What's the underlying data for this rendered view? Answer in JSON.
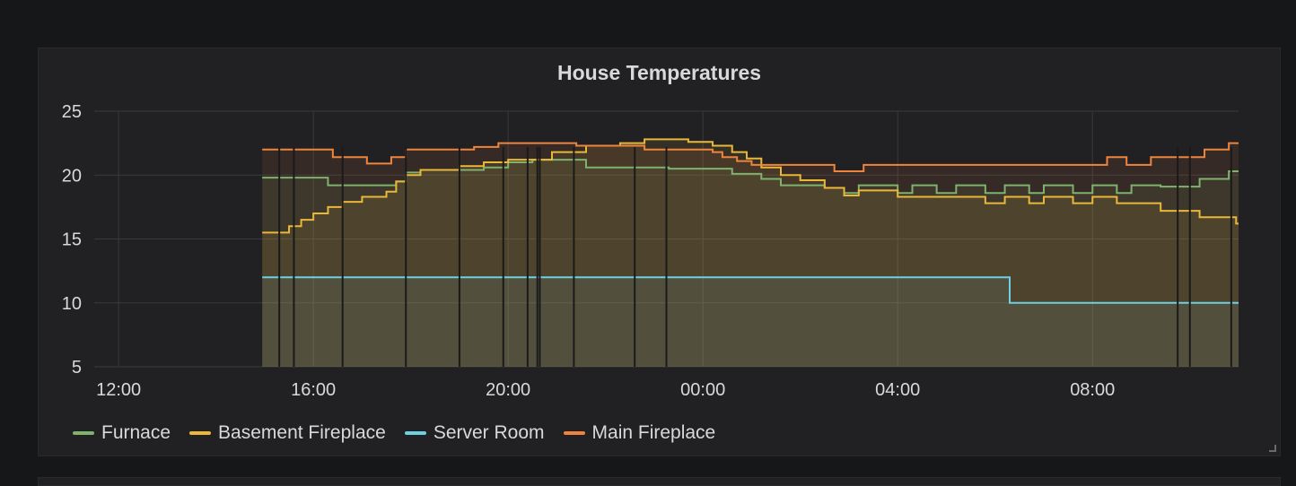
{
  "panel": {
    "title": "House Temperatures"
  },
  "chart_data": {
    "type": "line",
    "title": "House Temperatures",
    "xlabel": "",
    "ylabel": "",
    "x_ticks": [
      "12:00",
      "16:00",
      "20:00",
      "00:00",
      "04:00",
      "08:00"
    ],
    "x_tick_hours": [
      12,
      16,
      20,
      24,
      28,
      32
    ],
    "xlim": [
      11.5,
      35.0
    ],
    "y_ticks": [
      5,
      10,
      15,
      20,
      25
    ],
    "ylim": [
      5,
      25
    ],
    "grid": true,
    "legend_position": "bottom-left",
    "step": true,
    "fill": true,
    "x_unit": "hours (24 = 00:00 next day)",
    "series": [
      {
        "name": "Furnace",
        "color": "#7eb26d",
        "points": [
          [
            14.95,
            19.8
          ],
          [
            16.3,
            19.2
          ],
          [
            17.7,
            19.5
          ],
          [
            17.9,
            20.2
          ],
          [
            18.2,
            20.4
          ],
          [
            19.5,
            20.6
          ],
          [
            20.0,
            21.0
          ],
          [
            20.5,
            21.2
          ],
          [
            21.6,
            20.6
          ],
          [
            23.3,
            20.5
          ],
          [
            24.6,
            20.1
          ],
          [
            25.2,
            19.7
          ],
          [
            25.6,
            19.2
          ],
          [
            26.5,
            19.0
          ],
          [
            26.9,
            18.6
          ],
          [
            27.2,
            19.2
          ],
          [
            28.0,
            18.6
          ],
          [
            28.3,
            19.2
          ],
          [
            28.8,
            18.6
          ],
          [
            29.2,
            19.2
          ],
          [
            29.8,
            18.6
          ],
          [
            30.2,
            19.2
          ],
          [
            30.7,
            18.6
          ],
          [
            31.0,
            19.2
          ],
          [
            31.6,
            18.6
          ],
          [
            32.0,
            19.2
          ],
          [
            32.5,
            18.6
          ],
          [
            32.8,
            19.2
          ],
          [
            33.4,
            19.1
          ],
          [
            34.2,
            19.7
          ],
          [
            34.8,
            20.3
          ],
          [
            35.0,
            20.3
          ]
        ]
      },
      {
        "name": "Basement Fireplace",
        "color": "#eab839",
        "points": [
          [
            14.95,
            15.5
          ],
          [
            15.5,
            16.0
          ],
          [
            15.75,
            16.5
          ],
          [
            16.0,
            17.0
          ],
          [
            16.3,
            17.5
          ],
          [
            16.6,
            17.9
          ],
          [
            17.0,
            18.3
          ],
          [
            17.5,
            18.7
          ],
          [
            17.7,
            19.5
          ],
          [
            17.9,
            20.0
          ],
          [
            18.2,
            20.4
          ],
          [
            19.0,
            20.7
          ],
          [
            19.5,
            21.0
          ],
          [
            20.0,
            21.2
          ],
          [
            20.9,
            21.8
          ],
          [
            21.6,
            22.3
          ],
          [
            22.3,
            22.5
          ],
          [
            22.8,
            22.8
          ],
          [
            23.7,
            22.6
          ],
          [
            24.2,
            22.3
          ],
          [
            24.6,
            21.8
          ],
          [
            24.9,
            21.3
          ],
          [
            25.2,
            20.6
          ],
          [
            25.6,
            20.0
          ],
          [
            26.0,
            19.6
          ],
          [
            26.5,
            19.0
          ],
          [
            26.9,
            18.4
          ],
          [
            27.2,
            18.8
          ],
          [
            28.0,
            18.3
          ],
          [
            29.0,
            18.3
          ],
          [
            29.8,
            17.8
          ],
          [
            30.2,
            18.3
          ],
          [
            30.7,
            17.8
          ],
          [
            31.0,
            18.3
          ],
          [
            31.6,
            17.8
          ],
          [
            32.0,
            18.3
          ],
          [
            32.5,
            17.8
          ],
          [
            33.0,
            17.8
          ],
          [
            33.4,
            17.2
          ],
          [
            34.0,
            17.2
          ],
          [
            34.2,
            16.7
          ],
          [
            34.8,
            16.7
          ],
          [
            34.95,
            16.2
          ],
          [
            35.0,
            16.2
          ]
        ]
      },
      {
        "name": "Server Room",
        "color": "#6ed0e0",
        "points": [
          [
            14.95,
            12.0
          ],
          [
            30.3,
            12.0
          ],
          [
            30.3,
            10.0
          ],
          [
            35.0,
            10.0
          ]
        ]
      },
      {
        "name": "Main Fireplace",
        "color": "#ef843c",
        "points": [
          [
            14.95,
            22.0
          ],
          [
            16.4,
            21.4
          ],
          [
            17.1,
            20.9
          ],
          [
            17.6,
            21.4
          ],
          [
            17.9,
            22.0
          ],
          [
            19.3,
            22.2
          ],
          [
            19.8,
            22.5
          ],
          [
            21.4,
            22.3
          ],
          [
            22.1,
            22.3
          ],
          [
            22.8,
            22.0
          ],
          [
            24.2,
            21.8
          ],
          [
            24.4,
            21.4
          ],
          [
            24.7,
            21.1
          ],
          [
            25.0,
            20.8
          ],
          [
            26.7,
            20.3
          ],
          [
            27.3,
            20.8
          ],
          [
            28.3,
            20.8
          ],
          [
            29.8,
            20.8
          ],
          [
            31.5,
            20.8
          ],
          [
            32.3,
            21.4
          ],
          [
            32.7,
            20.8
          ],
          [
            33.2,
            21.4
          ],
          [
            34.1,
            21.4
          ],
          [
            34.3,
            22.0
          ],
          [
            34.8,
            22.5
          ],
          [
            35.0,
            22.5
          ]
        ]
      }
    ],
    "annotation_markers_x": [
      15.3,
      15.6,
      16.6,
      17.9,
      19.0,
      19.9,
      20.4,
      20.6,
      20.65,
      21.35,
      22.6,
      23.25,
      33.75,
      34.0,
      34.85
    ]
  }
}
